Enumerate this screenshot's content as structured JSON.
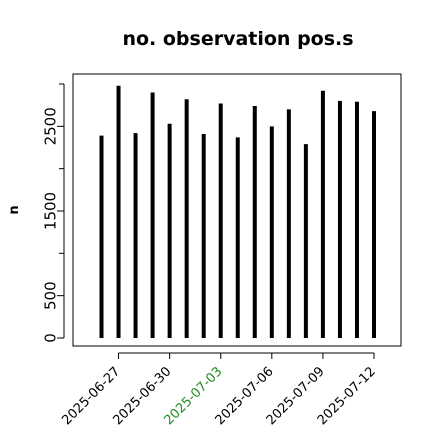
{
  "chart_data": {
    "type": "bar",
    "title": "no. observation pos.s",
    "ylabel": "n",
    "xlabel": "",
    "ylim": [
      0,
      3000
    ],
    "yticks": [
      0,
      500,
      1500,
      2500
    ],
    "grid": false,
    "x": [
      "2025-06-26",
      "2025-06-27",
      "2025-06-28",
      "2025-06-29",
      "2025-06-30",
      "2025-07-01",
      "2025-07-02",
      "2025-07-03",
      "2025-07-04",
      "2025-07-05",
      "2025-07-06",
      "2025-07-07",
      "2025-07-08",
      "2025-07-09",
      "2025-07-10",
      "2025-07-11",
      "2025-07-12"
    ],
    "values": [
      2390,
      2980,
      2420,
      2900,
      2530,
      2820,
      2410,
      2770,
      2370,
      2740,
      2500,
      2700,
      2290,
      2920,
      2800,
      2790,
      2680
    ],
    "xtick_labels": [
      {
        "date": "2025-06-27",
        "label": "2025-06-27",
        "color": "#000000"
      },
      {
        "date": "2025-06-30",
        "label": "2025-06-30",
        "color": "#000000"
      },
      {
        "date": "2025-07-03",
        "label": "2025-07-03",
        "color": "#228B22"
      },
      {
        "date": "2025-07-06",
        "label": "2025-07-06",
        "color": "#000000"
      },
      {
        "date": "2025-07-09",
        "label": "2025-07-09",
        "color": "#000000"
      },
      {
        "date": "2025-07-12",
        "label": "2025-07-12",
        "color": "#000000"
      }
    ],
    "bar_color": "#000000",
    "axis_color": "#000000"
  }
}
